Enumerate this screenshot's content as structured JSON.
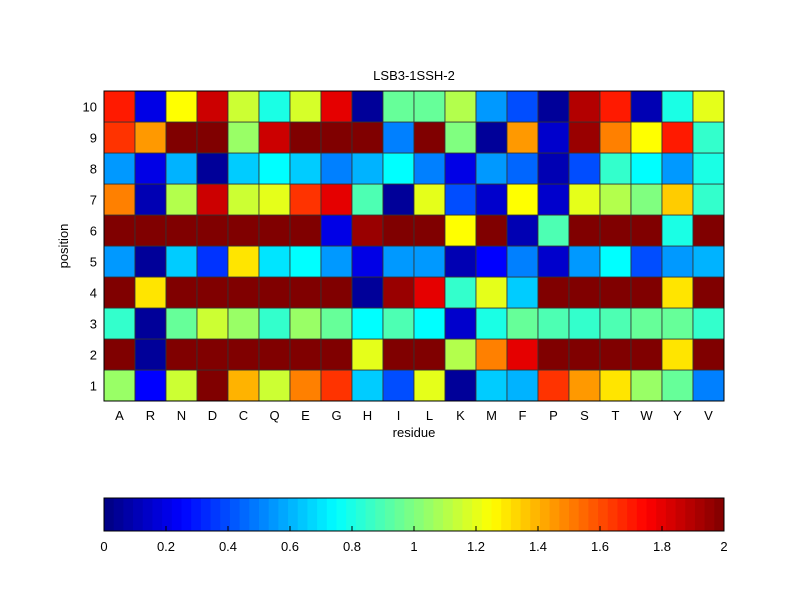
{
  "chart_data": {
    "type": "heatmap",
    "title": "LSB3-1SSH-2",
    "xlabel": "residue",
    "ylabel": "position",
    "x_categories": [
      "A",
      "R",
      "N",
      "D",
      "C",
      "Q",
      "E",
      "G",
      "H",
      "I",
      "L",
      "K",
      "M",
      "F",
      "P",
      "S",
      "T",
      "W",
      "Y",
      "V"
    ],
    "y_categories": [
      "1",
      "2",
      "3",
      "4",
      "5",
      "6",
      "7",
      "8",
      "9",
      "10"
    ],
    "colormap": "jet",
    "clim": [
      0,
      2
    ],
    "colorbar_ticks": [
      "0",
      "0.2",
      "0.4",
      "0.6",
      "0.8",
      "1",
      "1.2",
      "1.4",
      "1.6",
      "1.8",
      "2"
    ],
    "values_by_position": {
      "10": [
        1.7,
        0.2,
        1.25,
        1.85,
        1.15,
        0.8,
        1.17,
        1.8,
        0.05,
        0.95,
        0.95,
        1.1,
        0.55,
        0.4,
        0.05,
        1.9,
        1.7,
        0.1,
        0.8,
        1.2
      ],
      "9": [
        1.65,
        1.45,
        2,
        2,
        1.05,
        1.85,
        2,
        2,
        2,
        0.5,
        2,
        1.0,
        0.05,
        1.45,
        0.15,
        1.95,
        1.5,
        1.25,
        1.7,
        0.85
      ],
      "8": [
        0.55,
        0.2,
        0.6,
        0.05,
        0.65,
        0.75,
        0.65,
        0.5,
        0.6,
        0.75,
        0.5,
        0.2,
        0.55,
        0.45,
        0.1,
        0.4,
        0.85,
        0.75,
        0.55,
        0.8
      ],
      "7": [
        1.5,
        0.1,
        1.1,
        1.85,
        1.15,
        1.2,
        1.65,
        1.8,
        0.9,
        0.05,
        1.2,
        0.4,
        0.15,
        1.25,
        0.15,
        1.2,
        1.1,
        1.0,
        1.35,
        0.85
      ],
      "6": [
        2,
        2,
        2,
        2,
        2,
        2,
        2,
        0.2,
        1.95,
        2,
        2,
        1.25,
        2,
        0.1,
        0.9,
        2,
        2,
        2,
        0.8,
        2
      ],
      "5": [
        0.55,
        0.05,
        0.65,
        0.35,
        1.3,
        0.7,
        0.75,
        0.55,
        0.2,
        0.55,
        0.55,
        0.1,
        0.25,
        0.5,
        0.15,
        0.55,
        0.75,
        0.4,
        0.55,
        0.6
      ],
      "4": [
        2,
        1.3,
        2,
        2,
        2,
        2,
        2,
        2,
        0.05,
        1.95,
        1.8,
        0.85,
        1.2,
        0.65,
        2,
        2,
        2,
        2,
        1.3,
        2
      ],
      "3": [
        0.85,
        0.05,
        0.95,
        1.15,
        1.05,
        0.85,
        1.05,
        0.95,
        0.75,
        0.9,
        0.75,
        0.15,
        0.8,
        0.95,
        0.9,
        0.85,
        0.9,
        0.95,
        0.95,
        0.85
      ],
      "2": [
        2,
        0.05,
        2,
        2,
        2,
        2,
        2,
        2,
        1.2,
        2,
        2,
        1.1,
        1.5,
        1.8,
        2,
        2,
        2,
        2,
        1.3,
        2
      ],
      "1": [
        1.05,
        0.25,
        1.15,
        2,
        1.4,
        1.15,
        1.5,
        1.65,
        0.65,
        0.4,
        1.2,
        0.05,
        0.65,
        0.6,
        1.65,
        1.45,
        1.3,
        1.05,
        0.95,
        0.5
      ]
    }
  }
}
